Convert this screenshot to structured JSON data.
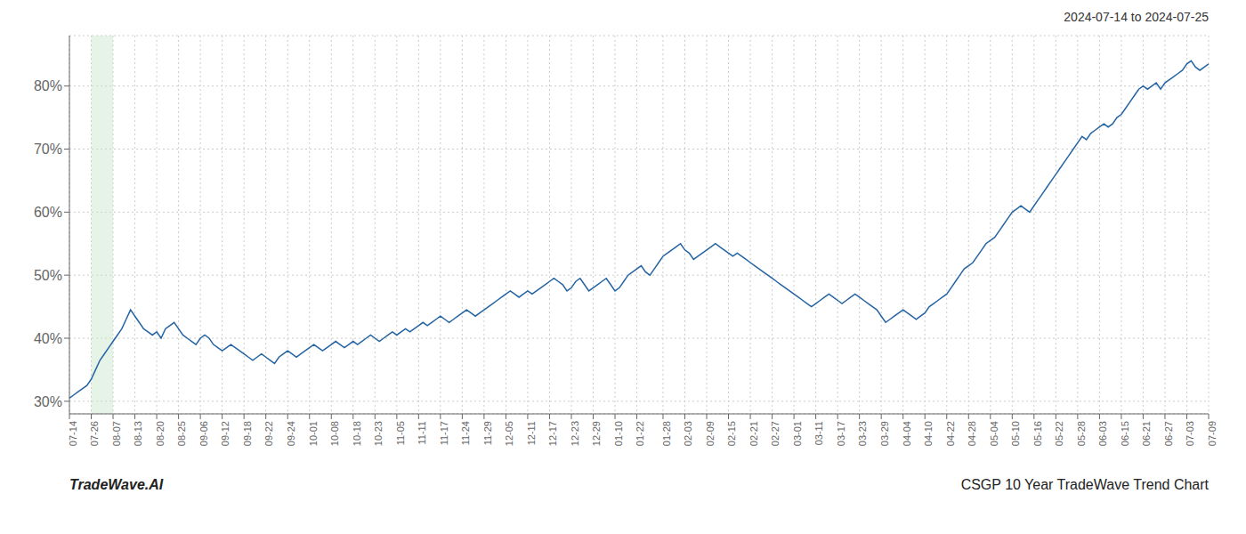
{
  "chart_data": {
    "type": "line",
    "title": "2024-07-14 to 2024-07-25",
    "annotations": [
      "TradeWave.AI",
      "CSGP 10 Year TradeWave Trend Chart"
    ],
    "categories": [
      "07-14",
      null,
      null,
      null,
      null,
      "07-26",
      null,
      null,
      null,
      null,
      "08-07",
      null,
      null,
      null,
      null,
      "08-13",
      null,
      null,
      null,
      null,
      "08-20",
      null,
      null,
      null,
      null,
      "08-25",
      null,
      null,
      null,
      null,
      "09-06",
      null,
      null,
      null,
      null,
      "09-12",
      null,
      null,
      null,
      null,
      "09-18",
      null,
      null,
      null,
      null,
      "09-22",
      null,
      null,
      null,
      null,
      "09-24",
      null,
      null,
      null,
      null,
      "10-01",
      null,
      null,
      null,
      null,
      "10-08",
      null,
      null,
      null,
      null,
      "10-18",
      null,
      null,
      null,
      null,
      "10-23",
      null,
      null,
      null,
      null,
      "11-05",
      null,
      null,
      null,
      null,
      "11-11",
      null,
      null,
      null,
      null,
      "11-17",
      null,
      null,
      null,
      null,
      "11-24",
      null,
      null,
      null,
      null,
      "11-29",
      null,
      null,
      null,
      null,
      "12-05",
      null,
      null,
      null,
      null,
      "12-11",
      null,
      null,
      null,
      null,
      "12-17",
      null,
      null,
      null,
      null,
      "12-23",
      null,
      null,
      null,
      null,
      "12-29",
      null,
      null,
      null,
      null,
      "01-10",
      null,
      null,
      null,
      null,
      "01-22",
      null,
      null,
      null,
      null,
      null,
      "01-28",
      null,
      null,
      null,
      null,
      "02-03",
      null,
      null,
      null,
      null,
      "02-09",
      null,
      null,
      null,
      null,
      "02-15",
      null,
      null,
      null,
      null,
      "02-21",
      null,
      null,
      null,
      null,
      "02-27",
      null,
      null,
      null,
      null,
      "03-01",
      null,
      null,
      null,
      null,
      "03-11",
      null,
      null,
      null,
      null,
      "03-17",
      null,
      null,
      null,
      null,
      "03-23",
      null,
      null,
      null,
      null,
      "03-29",
      null,
      null,
      null,
      null,
      "04-04",
      null,
      null,
      null,
      null,
      "04-10",
      null,
      null,
      null,
      null,
      "04-22",
      null,
      null,
      null,
      null,
      "04-28",
      null,
      null,
      null,
      null,
      "05-04",
      null,
      null,
      null,
      null,
      "05-10",
      null,
      null,
      null,
      null,
      "05-16",
      null,
      null,
      null,
      null,
      "05-22",
      null,
      null,
      null,
      null,
      "05-28",
      null,
      null,
      null,
      null,
      "06-03",
      null,
      null,
      null,
      null,
      "06-15",
      null,
      null,
      null,
      null,
      "06-21",
      null,
      null,
      null,
      null,
      "06-27",
      null,
      null,
      null,
      null,
      "07-03",
      null,
      null,
      null,
      null,
      "07-09"
    ],
    "values": [
      30.5,
      31.0,
      31.5,
      32.0,
      32.5,
      33.5,
      35.0,
      36.5,
      37.5,
      38.5,
      39.5,
      40.5,
      41.5,
      43.0,
      44.5,
      43.5,
      42.5,
      41.5,
      41.0,
      40.5,
      41.0,
      40.0,
      41.5,
      42.0,
      42.5,
      41.5,
      40.5,
      40.0,
      39.5,
      39.0,
      40.0,
      40.5,
      40.0,
      39.0,
      38.5,
      38.0,
      38.5,
      39.0,
      38.5,
      38.0,
      37.5,
      37.0,
      36.5,
      37.0,
      37.5,
      37.0,
      36.5,
      36.0,
      37.0,
      37.5,
      38.0,
      37.5,
      37.0,
      37.5,
      38.0,
      38.5,
      39.0,
      38.5,
      38.0,
      38.5,
      39.0,
      39.5,
      39.0,
      38.5,
      39.0,
      39.5,
      39.0,
      39.5,
      40.0,
      40.5,
      40.0,
      39.5,
      40.0,
      40.5,
      41.0,
      40.5,
      41.0,
      41.5,
      41.0,
      41.5,
      42.0,
      42.5,
      42.0,
      42.5,
      43.0,
      43.5,
      43.0,
      42.5,
      43.0,
      43.5,
      44.0,
      44.5,
      44.0,
      43.5,
      44.0,
      44.5,
      45.0,
      45.5,
      46.0,
      46.5,
      47.0,
      47.5,
      47.0,
      46.5,
      47.0,
      47.5,
      47.0,
      47.5,
      48.0,
      48.5,
      49.0,
      49.5,
      49.0,
      48.5,
      47.5,
      48.0,
      49.0,
      49.5,
      48.5,
      47.5,
      48.0,
      48.5,
      49.0,
      49.5,
      48.5,
      47.5,
      48.0,
      49.0,
      50.0,
      50.5,
      51.0,
      51.5,
      50.5,
      50.0,
      51.0,
      52.0,
      53.0,
      53.5,
      54.0,
      54.5,
      55.0,
      54.0,
      53.5,
      52.5,
      53.0,
      53.5,
      54.0,
      54.5,
      55.0,
      54.5,
      54.0,
      53.5,
      53.0,
      53.5,
      53.0,
      52.5,
      52.0,
      51.5,
      51.0,
      50.5,
      50.0,
      49.5,
      49.0,
      48.5,
      48.0,
      47.5,
      47.0,
      46.5,
      46.0,
      45.5,
      45.0,
      45.5,
      46.0,
      46.5,
      47.0,
      46.5,
      46.0,
      45.5,
      46.0,
      46.5,
      47.0,
      46.5,
      46.0,
      45.5,
      45.0,
      44.5,
      43.5,
      42.5,
      43.0,
      43.5,
      44.0,
      44.5,
      44.0,
      43.5,
      43.0,
      43.5,
      44.0,
      45.0,
      45.5,
      46.0,
      46.5,
      47.0,
      48.0,
      49.0,
      50.0,
      51.0,
      51.5,
      52.0,
      53.0,
      54.0,
      55.0,
      55.5,
      56.0,
      57.0,
      58.0,
      59.0,
      60.0,
      60.5,
      61.0,
      60.5,
      60.0,
      61.0,
      62.0,
      63.0,
      64.0,
      65.0,
      66.0,
      67.0,
      68.0,
      69.0,
      70.0,
      71.0,
      72.0,
      71.5,
      72.5,
      73.0,
      73.5,
      74.0,
      73.5,
      74.0,
      75.0,
      75.5,
      76.5,
      77.5,
      78.5,
      79.5,
      80.0,
      79.5,
      80.0,
      80.5,
      79.5,
      80.5,
      81.0,
      81.5,
      82.0,
      82.5,
      83.5,
      84.0,
      83.0,
      82.5,
      83.0,
      83.5
    ],
    "color": "#2464a4",
    "ylim": [
      28,
      88
    ],
    "yticks": [
      {
        "value": 30,
        "label": "30%"
      },
      {
        "value": 40,
        "label": "40%"
      },
      {
        "value": 50,
        "label": "50%"
      },
      {
        "value": 60,
        "label": "60%"
      },
      {
        "value": 70,
        "label": "70%"
      },
      {
        "value": 80,
        "label": "80%"
      }
    ],
    "grid": true,
    "highlight": {
      "from": "07-26",
      "to": "08-07",
      "color": "#c8e6c9"
    }
  }
}
